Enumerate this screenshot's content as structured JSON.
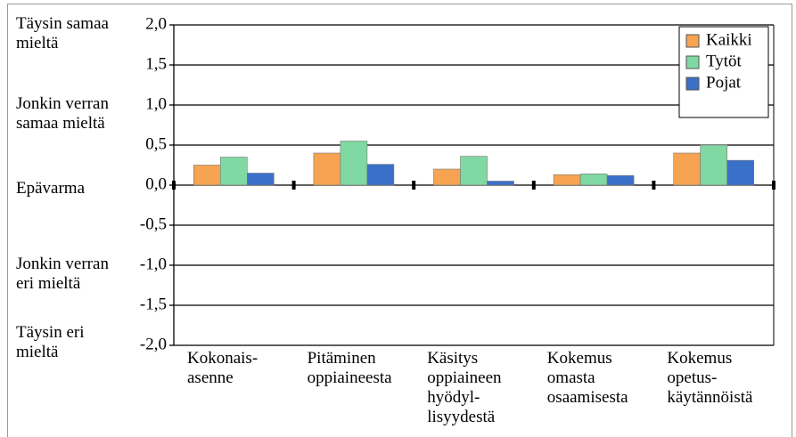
{
  "chart_data": {
    "type": "bar",
    "categories": [
      "Kokonais-\nasenne",
      "Pitäminen\noppiaineesta",
      "Käsitys\noppiaineen\nhyödyl-\nlisyydestä",
      "Kokemus\nomasta\nosaamisesta",
      "Kokemus\nopetus-\nkäytännöistä"
    ],
    "series": [
      {
        "name": "Kaikki",
        "color": "#f6a452",
        "values": [
          0.25,
          0.4,
          0.2,
          0.13,
          0.4
        ]
      },
      {
        "name": "Tytöt",
        "color": "#80d8a2",
        "values": [
          0.35,
          0.55,
          0.36,
          0.14,
          0.5
        ]
      },
      {
        "name": "Pojat",
        "color": "#3a70c8",
        "values": [
          0.15,
          0.26,
          0.05,
          0.12,
          0.31
        ]
      }
    ],
    "ylim": [
      -2,
      2
    ],
    "yticks": [
      {
        "value": 2,
        "label": "2,0"
      },
      {
        "value": 1.5,
        "label": "1,5"
      },
      {
        "value": 1,
        "label": "1,0"
      },
      {
        "value": 0.5,
        "label": "0,5"
      },
      {
        "value": 0,
        "label": "0,0"
      },
      {
        "value": -0.5,
        "label": "-0,5"
      },
      {
        "value": -1,
        "label": "-1,0"
      },
      {
        "value": -1.5,
        "label": "-1,5"
      },
      {
        "value": -2,
        "label": "-2,0"
      }
    ],
    "annotations": [
      "Täysin samaa\nmieltä",
      "Jonkin verran\nsamaa mieltä",
      "Epävarma",
      "Jonkin verran\neri mieltä",
      "Täysin eri\nmieltä"
    ],
    "grid": true,
    "legend": "top-right"
  }
}
